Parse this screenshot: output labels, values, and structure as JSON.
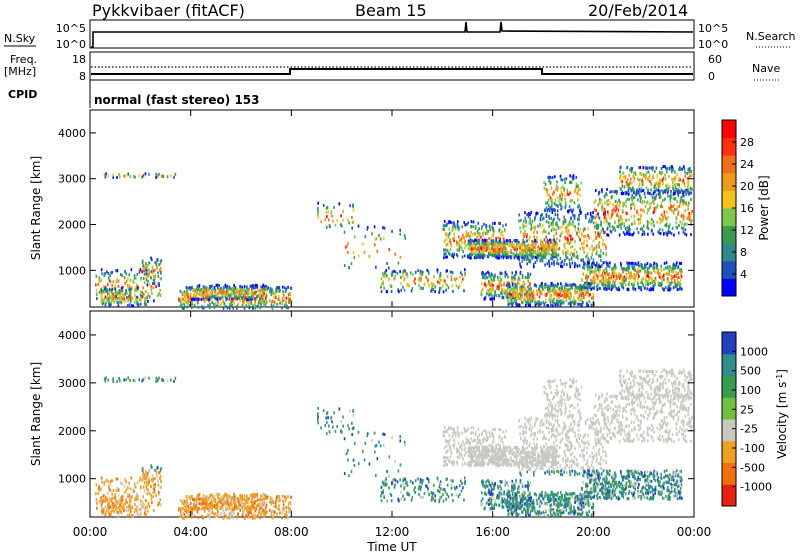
{
  "header": {
    "station": "Pykkvibaer (fitACF)",
    "beam": "Beam 15",
    "date": "20/Feb/2014"
  },
  "top_panels": {
    "nsky_label": "N.Sky",
    "nsky_ticks": [
      "10^5",
      "10^0"
    ],
    "nsearch_label": "N.Search",
    "nsearch_ticks": [
      "10^5",
      "10^0"
    ],
    "freq_label": "Freq.",
    "freq_unit": "[MHz]",
    "freq_ticks": [
      "18",
      "8"
    ],
    "nave_label": "Nave",
    "nave_ticks": [
      "60",
      "0"
    ],
    "cpid_label": "CPID",
    "cpid_text": "normal (fast stereo) 153"
  },
  "chart_data": [
    {
      "type": "heatmap",
      "name": "power",
      "ylabel": "Slant Range [km]",
      "y_ticks": [
        "1000",
        "2000",
        "3000",
        "4000"
      ],
      "ylim": [
        200,
        4500
      ],
      "xlim_hours": [
        0,
        24
      ],
      "colorbar": {
        "label": "Power [dB]",
        "ticks": [
          "4",
          "8",
          "12",
          "16",
          "20",
          "24",
          "28"
        ],
        "colors": [
          "#0000ff",
          "#1f4fb8",
          "#2f8a8a",
          "#3c9a50",
          "#7cc84a",
          "#f5c21b",
          "#f09a1a",
          "#f0701a",
          "#ff3010",
          "#ff0000"
        ]
      }
    },
    {
      "type": "heatmap",
      "name": "velocity",
      "ylabel": "Slant Range [km]",
      "y_ticks": [
        "1000",
        "2000",
        "3000",
        "4000"
      ],
      "ylim": [
        200,
        4500
      ],
      "xlim_hours": [
        0,
        24
      ],
      "x_ticks": [
        "00:00",
        "04:00",
        "08:00",
        "12:00",
        "16:00",
        "20:00",
        "00:00"
      ],
      "xlabel": "Time UT",
      "colorbar": {
        "label": "Velocity [m s-1]",
        "ticks": [
          "1000",
          "500",
          "100",
          "25",
          "-25",
          "-100",
          "-500",
          "-1000"
        ],
        "colors": [
          "#2040c0",
          "#2e8e8a",
          "#3a9a50",
          "#70c040",
          "#c8c8c0",
          "#f0a020",
          "#f07010",
          "#e82010"
        ]
      }
    }
  ]
}
